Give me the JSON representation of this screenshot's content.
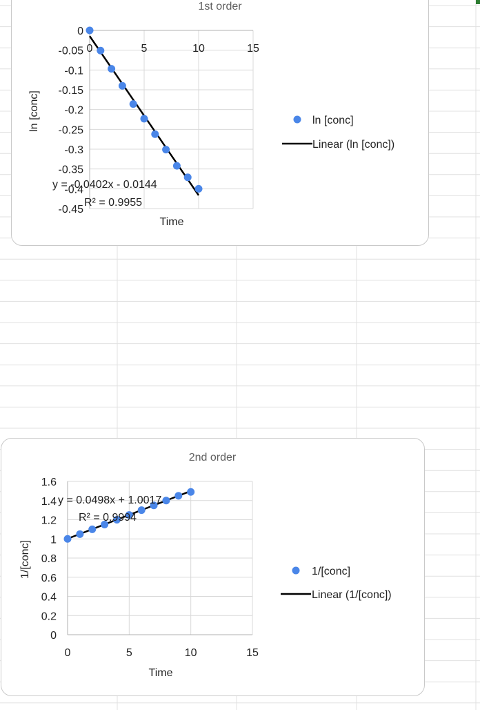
{
  "charts": [
    {
      "title": "1st order",
      "xlabel": "Time",
      "ylabel": "ln [conc]",
      "equation": "y = -0.0402x - 0.0144",
      "r_squared": "R² = 0.9955",
      "legend": {
        "marker_label": "ln [conc]",
        "line_label": "Linear (ln [conc])"
      }
    },
    {
      "title": "2nd order",
      "xlabel": "Time",
      "ylabel": "1/[conc]",
      "equation": "y = 0.0498x + 1.0017",
      "r_squared": "R² = 0.9994",
      "legend": {
        "marker_label": "1/[conc]",
        "line_label": "Linear (1/[conc])"
      }
    }
  ],
  "chart_data": [
    {
      "type": "scatter",
      "title": "1st order",
      "xlabel": "Time",
      "ylabel": "ln [conc]",
      "xlim": [
        0,
        15
      ],
      "ylim": [
        -0.45,
        0
      ],
      "x_ticks": [
        0,
        5,
        10,
        15
      ],
      "y_ticks": [
        0,
        -0.05,
        -0.1,
        -0.15,
        -0.2,
        -0.25,
        -0.3,
        -0.35,
        -0.4,
        -0.45
      ],
      "x_tick_labels": [
        "0",
        "5",
        "10",
        "15"
      ],
      "y_tick_labels": [
        "0",
        "-0.05",
        "-0.1",
        "-0.15",
        "-0.2",
        "-0.25",
        "-0.3",
        "-0.35",
        "-0.4",
        "-0.45"
      ],
      "grid": true,
      "legend_position": "right",
      "series": [
        {
          "name": "ln [conc]",
          "x": [
            0,
            1,
            2,
            3,
            4,
            5,
            6,
            7,
            8,
            9,
            10
          ],
          "y": [
            0,
            -0.051,
            -0.097,
            -0.14,
            -0.186,
            -0.223,
            -0.262,
            -0.301,
            -0.342,
            -0.371,
            -0.4
          ]
        }
      ],
      "trendline": {
        "name": "Linear (ln [conc])",
        "slope": -0.0402,
        "intercept": -0.0144,
        "x_range": [
          0,
          10
        ]
      },
      "marker_color": "#4a86e8",
      "line_color": "#000000"
    },
    {
      "type": "scatter",
      "title": "2nd order",
      "xlabel": "Time",
      "ylabel": "1/[conc]",
      "xlim": [
        0,
        15
      ],
      "ylim": [
        0,
        1.6
      ],
      "x_ticks": [
        0,
        5,
        10,
        15
      ],
      "y_ticks": [
        0,
        0.2,
        0.4,
        0.6,
        0.8,
        1,
        1.2,
        1.4,
        1.6
      ],
      "x_tick_labels": [
        "0",
        "5",
        "10",
        "15"
      ],
      "y_tick_labels": [
        "0",
        "0.2",
        "0.4",
        "0.6",
        "0.8",
        "1",
        "1.2",
        "1.4",
        "1.6"
      ],
      "grid": true,
      "legend_position": "right",
      "series": [
        {
          "name": "1/[conc]",
          "x": [
            0,
            1,
            2,
            3,
            4,
            5,
            6,
            7,
            8,
            9,
            10
          ],
          "y": [
            1.0,
            1.05,
            1.1,
            1.15,
            1.2,
            1.25,
            1.3,
            1.35,
            1.4,
            1.45,
            1.49
          ]
        }
      ],
      "trendline": {
        "name": "Linear (1/[conc])",
        "slope": 0.0498,
        "intercept": 1.0017,
        "x_range": [
          0,
          10
        ]
      },
      "marker_color": "#4a86e8",
      "line_color": "#000000"
    }
  ]
}
